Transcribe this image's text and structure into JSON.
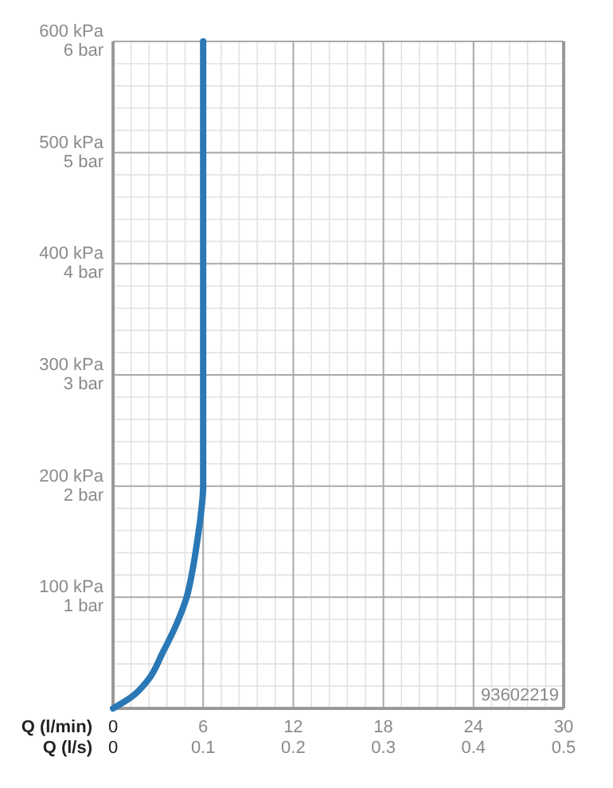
{
  "chart_data": {
    "type": "line",
    "xlabel": "Q (l/min)",
    "x2label": "Q (l/s)",
    "x": [
      0,
      1.2,
      2.3,
      3.3,
      4.2,
      4.9,
      5.3,
      5.6,
      5.85,
      6,
      6
    ],
    "series": [
      {
        "color": "#2a78b5",
        "values": [
          0,
          10,
          25,
          50,
          75,
          100,
          125,
          150,
          175,
          200,
          600
        ]
      }
    ],
    "xlim": [
      0,
      30
    ],
    "xticks": [
      0,
      6,
      12,
      18,
      24,
      30
    ],
    "x2lim": [
      0,
      0.5
    ],
    "x2ticks": [
      0,
      0.1,
      0.2,
      0.3,
      0.4,
      0.5
    ],
    "ylim": [
      0,
      600
    ],
    "yticks": [
      {
        "value": 0,
        "label": null
      },
      {
        "value": 100,
        "label": "100 kPa"
      },
      {
        "value": 200,
        "label": "200 kPa"
      },
      {
        "value": 300,
        "label": "300 kPa"
      },
      {
        "value": 400,
        "label": "400 kPa"
      },
      {
        "value": 500,
        "label": "500 kPa"
      },
      {
        "value": 600,
        "label": "600 kPa"
      }
    ],
    "y2lim": [
      0,
      6
    ],
    "y2ticks": [
      {
        "value": 1,
        "label": "1 bar"
      },
      {
        "value": 2,
        "label": "2 bar"
      },
      {
        "value": 3,
        "label": "3 bar"
      },
      {
        "value": 4,
        "label": "4 bar"
      },
      {
        "value": 5,
        "label": "5 bar"
      },
      {
        "value": 6,
        "label": "6 bar"
      }
    ],
    "annotations": [
      "93602219"
    ],
    "grid": true,
    "line_style": "solid",
    "marker": "none"
  }
}
